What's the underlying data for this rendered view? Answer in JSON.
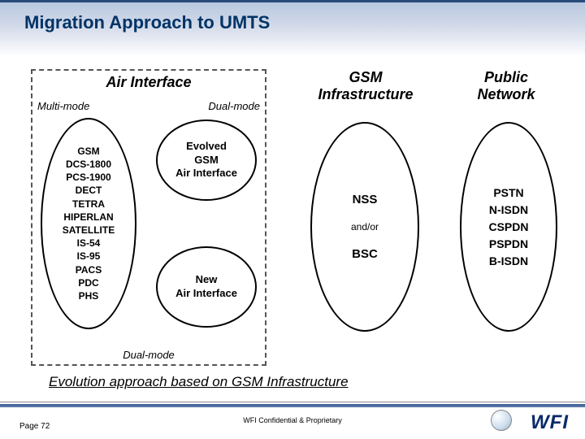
{
  "title": "Migration Approach to UMTS",
  "air_interface": {
    "title": "Air Interface",
    "multi_label": "Multi-mode",
    "dual_right": "Dual-mode",
    "dual_bottom": "Dual-mode",
    "multi_items": "GSM\nDCS-1800\nPCS-1900\nDECT\nTETRA\nHIPERLAN\nSATELLITE\nIS-54\nIS-95\nPACS\nPDC\nPHS",
    "evolved": "Evolved\nGSM\nAir Interface",
    "new": "New\nAir Interface"
  },
  "gsm_infra": {
    "head": "GSM\nInfrastructure",
    "top": "NSS",
    "andor": "and/or",
    "bottom": "BSC"
  },
  "public_net": {
    "head": "Public\nNetwork",
    "items": "PSTN\nN-ISDN\nCSPDN\nPSPDN\nB-ISDN"
  },
  "caption": "Evolution approach based on GSM Infrastructure",
  "footer": {
    "page": "Page 72",
    "conf": "WFI Confidential & Proprietary",
    "logo": "WFI"
  },
  "colors": {
    "title": "#003366",
    "band": "#2a5090",
    "border": "#000000"
  }
}
